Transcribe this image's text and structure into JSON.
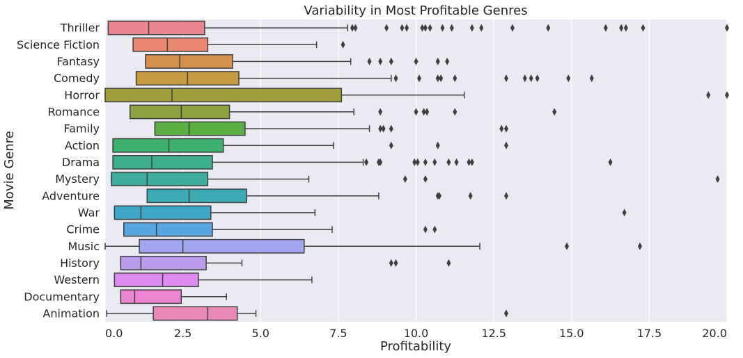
{
  "chart_data": {
    "type": "boxplot",
    "orientation": "horizontal",
    "title": "Variability in Most Profitable Genres",
    "xlabel": "Profitability",
    "ylabel": "Movie Genre",
    "xlim": [
      0,
      20
    ],
    "xticks": [
      0,
      2.5,
      5,
      7.5,
      10,
      12.5,
      15,
      17.5,
      20
    ],
    "xtick_labels": [
      "0.0",
      "2.5",
      "5.0",
      "7.5",
      "10.0",
      "12.5",
      "15.0",
      "17.5",
      "20.0"
    ],
    "grid": true,
    "background": "#eaeaf2",
    "edge_color": "#3f3f3f",
    "series": [
      {
        "category": "Thriller",
        "color": "#e8858e",
        "min": 0.1,
        "q1": 0.1,
        "median": 1.4,
        "q3": 3.2,
        "max": 7.8,
        "outliers": [
          7.95,
          8.05,
          9.05,
          9.55,
          9.7,
          10.2,
          10.3,
          10.45,
          10.85,
          11.15,
          11.8,
          12.1,
          13.1,
          14.25,
          16.1,
          16.6,
          16.75,
          17.3,
          20.0
        ]
      },
      {
        "category": "Science Fiction",
        "color": "#e9876f",
        "min": 0.9,
        "q1": 0.9,
        "median": 2.0,
        "q3": 3.3,
        "max": 6.8,
        "outliers": [
          7.65
        ]
      },
      {
        "category": "Fantasy",
        "color": "#d4914b",
        "min": 1.3,
        "q1": 1.3,
        "median": 2.4,
        "q3": 4.1,
        "max": 7.9,
        "outliers": [
          8.5,
          8.85,
          9.2,
          10.0,
          10.7,
          11.0
        ]
      },
      {
        "category": "Comedy",
        "color": "#c59a41",
        "min": 1.0,
        "q1": 1.0,
        "median": 2.65,
        "q3": 4.3,
        "max": 9.2,
        "outliers": [
          9.35,
          10.1,
          10.7,
          10.8,
          11.25,
          12.9,
          13.5,
          13.7,
          13.9,
          14.9,
          15.65
        ]
      },
      {
        "category": "Horror",
        "color": "#a09f3b",
        "min": 0.0,
        "q1": 0.0,
        "median": 2.15,
        "q3": 7.6,
        "max": 11.55,
        "outliers": [
          19.4,
          20.0
        ]
      },
      {
        "category": "Romance",
        "color": "#8ba23f",
        "min": 0.8,
        "q1": 0.8,
        "median": 2.45,
        "q3": 4.0,
        "max": 8.0,
        "outliers": [
          8.85,
          10.0,
          10.25,
          10.35,
          11.25,
          14.45
        ]
      },
      {
        "category": "Family",
        "color": "#5cb041",
        "min": 1.6,
        "q1": 1.6,
        "median": 2.7,
        "q3": 4.5,
        "max": 8.5,
        "outliers": [
          8.85,
          8.95,
          9.2,
          12.75,
          12.9
        ]
      },
      {
        "category": "Action",
        "color": "#3fb16c",
        "min": 0.25,
        "q1": 0.25,
        "median": 2.05,
        "q3": 3.8,
        "max": 7.35,
        "outliers": [
          9.2,
          10.7,
          12.9
        ]
      },
      {
        "category": "Drama",
        "color": "#3cae8d",
        "min": 0.25,
        "q1": 0.25,
        "median": 1.5,
        "q3": 3.45,
        "max": 8.3,
        "outliers": [
          8.4,
          8.8,
          8.85,
          9.95,
          10.05,
          10.3,
          10.6,
          11.05,
          11.3,
          11.7,
          11.8,
          16.25
        ]
      },
      {
        "category": "Mystery",
        "color": "#3eac9f",
        "min": 0.2,
        "q1": 0.2,
        "median": 1.35,
        "q3": 3.3,
        "max": 6.55,
        "outliers": [
          9.65,
          10.3,
          19.7
        ]
      },
      {
        "category": "Adventure",
        "color": "#3dabb3",
        "min": 1.35,
        "q1": 1.35,
        "median": 2.7,
        "q3": 4.55,
        "max": 8.8,
        "outliers": [
          10.7,
          10.75,
          11.75,
          12.9
        ]
      },
      {
        "category": "War",
        "color": "#3ea8c6",
        "min": 0.3,
        "q1": 0.3,
        "median": 1.15,
        "q3": 3.4,
        "max": 6.75,
        "outliers": [
          16.7
        ]
      },
      {
        "category": "Crime",
        "color": "#57a6e0",
        "min": 0.6,
        "q1": 0.6,
        "median": 1.65,
        "q3": 3.45,
        "max": 7.3,
        "outliers": [
          10.3,
          10.6
        ]
      },
      {
        "category": "Music",
        "color": "#a2a6ee",
        "min": 0.0,
        "q1": 1.1,
        "median": 2.5,
        "q3": 6.4,
        "max": 12.05,
        "outliers": [
          14.85,
          17.2
        ]
      },
      {
        "category": "History",
        "color": "#bb9cec",
        "min": 0.5,
        "q1": 0.5,
        "median": 1.15,
        "q3": 3.25,
        "max": 4.4,
        "outliers": [
          9.2,
          9.35,
          11.05
        ]
      },
      {
        "category": "Western",
        "color": "#dd8df0",
        "min": 0.3,
        "q1": 0.3,
        "median": 1.85,
        "q3": 3.0,
        "max": 6.65,
        "outliers": []
      },
      {
        "category": "Documentary",
        "color": "#ec84d3",
        "min": 0.5,
        "q1": 0.5,
        "median": 0.95,
        "q3": 2.45,
        "max": 3.9,
        "outliers": []
      },
      {
        "category": "Animation",
        "color": "#ea89b8",
        "min": 0.05,
        "q1": 1.55,
        "median": 3.3,
        "q3": 4.25,
        "max": 4.85,
        "outliers": [
          12.9
        ]
      }
    ]
  }
}
